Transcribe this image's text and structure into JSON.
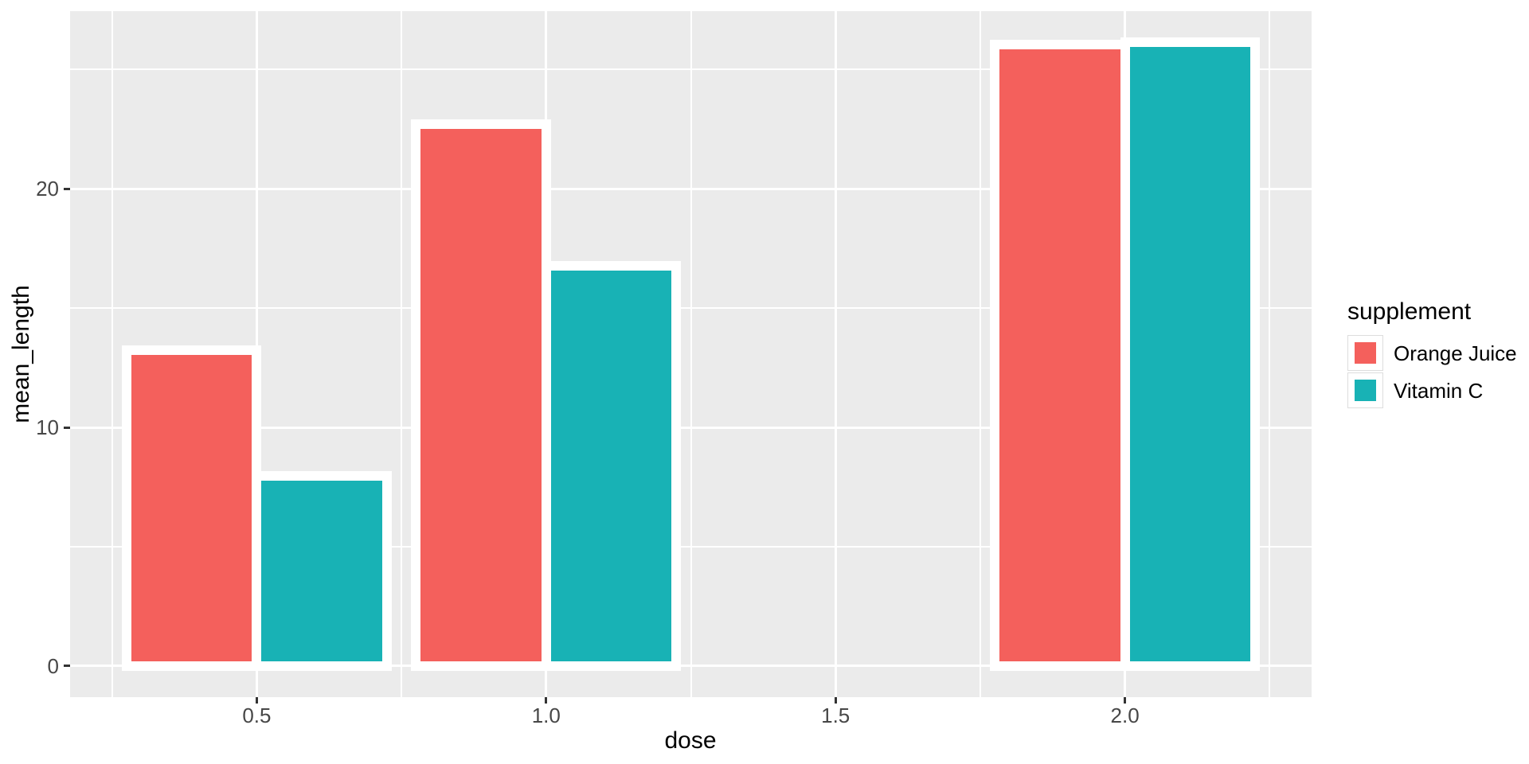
{
  "chart_data": {
    "type": "bar",
    "orientation": "vertical",
    "grouping": "dodged",
    "title": "",
    "xlabel": "dose",
    "ylabel": "mean_length",
    "legend_title": "supplement",
    "legend_position": "right",
    "categories": [
      0.5,
      1.0,
      2.0
    ],
    "series": [
      {
        "name": "Orange Juice",
        "color": "#F4605C",
        "values": [
          13.23,
          22.7,
          26.06
        ]
      },
      {
        "name": "Vitamin C",
        "color": "#18B2B5",
        "values": [
          7.98,
          16.77,
          26.14
        ]
      }
    ],
    "bar_width": 0.225,
    "bar_outline_color": "#FFFFFF",
    "xlim": [
      0.1775,
      2.3225
    ],
    "ylim": [
      -1.31,
      27.45
    ],
    "x_major_ticks": [
      0.5,
      1.0,
      1.5,
      2.0
    ],
    "x_major_labels": [
      "0.5",
      "1.0",
      "1.5",
      "2.0"
    ],
    "x_minor_ticks": [
      0.25,
      0.75,
      1.25,
      1.75,
      2.25
    ],
    "y_major_ticks": [
      0,
      10,
      20
    ],
    "y_major_labels": [
      "0",
      "10",
      "20"
    ],
    "y_minor_ticks": [
      5,
      15,
      25
    ],
    "grid": "major+minor",
    "legend_entries": [
      "Orange Juice",
      "Vitamin C"
    ],
    "theme": {
      "background": "#FFFFFF",
      "panel_bg": "#EBEBEB",
      "grid_color": "#FFFFFF",
      "tick_color": "#333333",
      "tick_label_color": "#474747",
      "axis_title_color": "#000000",
      "legend_text_color": "#000000",
      "legend_key_bg": "#FFFFFF",
      "legend_key_border": "#DDDDDD"
    }
  }
}
